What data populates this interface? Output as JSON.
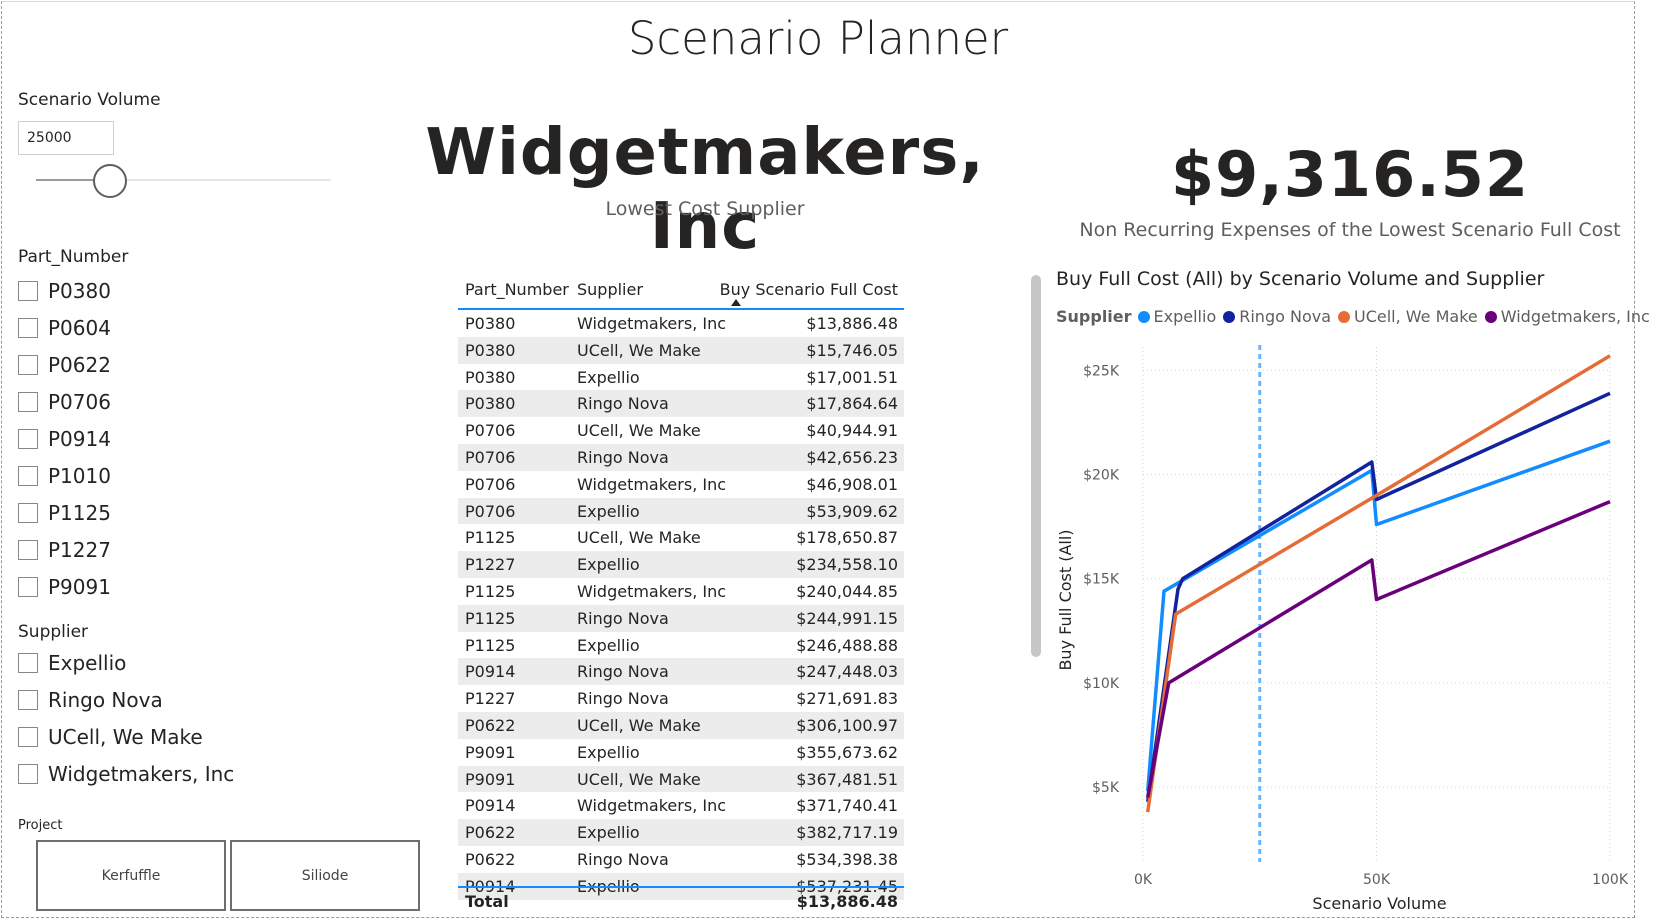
{
  "page_title": "Scenario Planner",
  "scenario_volume": {
    "title": "Scenario Volume",
    "value": "25000",
    "slider_fraction": 0.25
  },
  "part_number_slicer": {
    "title": "Part_Number",
    "items": [
      "P0380",
      "P0604",
      "P0622",
      "P0706",
      "P0914",
      "P1010",
      "P1125",
      "P1227",
      "P9091"
    ]
  },
  "supplier_slicer": {
    "title": "Supplier",
    "items": [
      "Expellio",
      "Ringo Nova",
      "UCell, We Make",
      "Widgetmakers, Inc"
    ]
  },
  "project_slicer": {
    "title": "Project",
    "tiles": [
      "Kerfuffle",
      "Siliode"
    ]
  },
  "supplier_card": {
    "value": "Widgetmakers, Inc",
    "label": "Lowest Cost Supplier"
  },
  "nre_card": {
    "value": "$9,316.52",
    "label": "Non Recurring Expenses of the Lowest Scenario Full Cost"
  },
  "table": {
    "headers": [
      "Part_Number",
      "Supplier",
      "Buy Scenario Full Cost"
    ],
    "rows": [
      [
        "P0380",
        "Widgetmakers, Inc",
        "$13,886.48"
      ],
      [
        "P0380",
        "UCell, We Make",
        "$15,746.05"
      ],
      [
        "P0380",
        "Expellio",
        "$17,001.51"
      ],
      [
        "P0380",
        "Ringo Nova",
        "$17,864.64"
      ],
      [
        "P0706",
        "UCell, We Make",
        "$40,944.91"
      ],
      [
        "P0706",
        "Ringo Nova",
        "$42,656.23"
      ],
      [
        "P0706",
        "Widgetmakers, Inc",
        "$46,908.01"
      ],
      [
        "P0706",
        "Expellio",
        "$53,909.62"
      ],
      [
        "P1125",
        "UCell, We Make",
        "$178,650.87"
      ],
      [
        "P1227",
        "Expellio",
        "$234,558.10"
      ],
      [
        "P1125",
        "Widgetmakers, Inc",
        "$240,044.85"
      ],
      [
        "P1125",
        "Ringo Nova",
        "$244,991.15"
      ],
      [
        "P1125",
        "Expellio",
        "$246,488.88"
      ],
      [
        "P0914",
        "Ringo Nova",
        "$247,448.03"
      ],
      [
        "P1227",
        "Ringo Nova",
        "$271,691.83"
      ],
      [
        "P0622",
        "UCell, We Make",
        "$306,100.97"
      ],
      [
        "P9091",
        "Expellio",
        "$355,673.62"
      ],
      [
        "P9091",
        "UCell, We Make",
        "$367,481.51"
      ],
      [
        "P0914",
        "Widgetmakers, Inc",
        "$371,740.41"
      ],
      [
        "P0622",
        "Expellio",
        "$382,717.19"
      ],
      [
        "P0622",
        "Ringo Nova",
        "$534,398.38"
      ],
      [
        "P0914",
        "Expellio",
        "$537,231.45"
      ]
    ],
    "total_label": "Total",
    "total_value": "$13,886.48"
  },
  "chart_data": {
    "type": "line",
    "title": "Buy Full Cost (All) by Scenario Volume and Supplier",
    "legend_title": "Supplier",
    "legend_placement": "top-left",
    "xlabel": "Scenario Volume",
    "ylabel": "Buy Full Cost (All)",
    "x_ticks": [
      {
        "value": 0,
        "label": "0K"
      },
      {
        "value": 50000,
        "label": "50K"
      },
      {
        "value": 100000,
        "label": "100K"
      }
    ],
    "y_ticks": [
      {
        "value": 5000,
        "label": "$5K"
      },
      {
        "value": 10000,
        "label": "$10K"
      },
      {
        "value": 15000,
        "label": "$15K"
      },
      {
        "value": 20000,
        "label": "$20K"
      },
      {
        "value": 25000,
        "label": "$25K"
      }
    ],
    "xlim": [
      0,
      100000
    ],
    "ylim": [
      1500,
      26600
    ],
    "grid": true,
    "reference_line_x": 25000,
    "series": [
      {
        "name": "Expellio",
        "color": "#118dff",
        "points": [
          [
            1000,
            4800
          ],
          [
            4500,
            14400
          ],
          [
            49000,
            20200
          ],
          [
            50000,
            17600
          ],
          [
            100000,
            21600
          ]
        ]
      },
      {
        "name": "Ringo Nova",
        "color": "#12239e",
        "points": [
          [
            1000,
            4300
          ],
          [
            7500,
            14500
          ],
          [
            8500,
            15000
          ],
          [
            49000,
            20600
          ],
          [
            50000,
            18800
          ],
          [
            100000,
            23900
          ]
        ]
      },
      {
        "name": "UCell, We Make",
        "color": "#e66c37",
        "points": [
          [
            1000,
            3800
          ],
          [
            7000,
            13300
          ],
          [
            50000,
            19000
          ],
          [
            100000,
            25700
          ]
        ]
      },
      {
        "name": "Widgetmakers, Inc",
        "color": "#6b007b",
        "points": [
          [
            1000,
            4500
          ],
          [
            5500,
            10000
          ],
          [
            49000,
            15900
          ],
          [
            50000,
            14000
          ],
          [
            100000,
            18700
          ]
        ]
      }
    ]
  }
}
